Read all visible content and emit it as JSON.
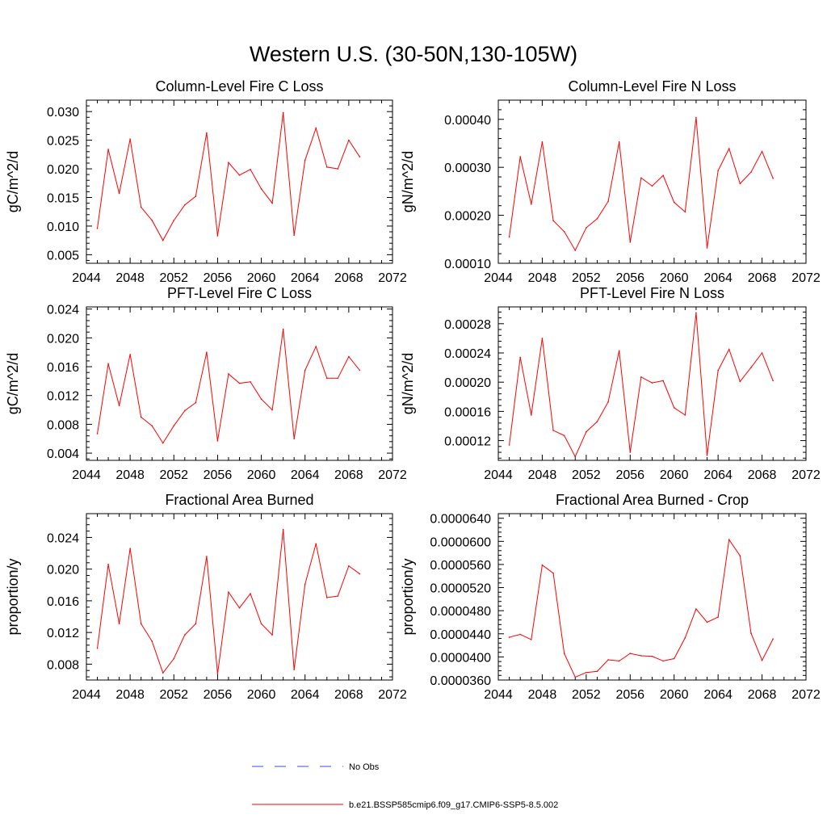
{
  "title": "Western U.S. (30-50N,130-105W)",
  "colors": {
    "model": "#ff0000",
    "obs": "#3b4fd9",
    "axis": "#000000"
  },
  "legend": [
    {
      "label": "No Obs",
      "style": "dashed",
      "color": "#3b4fd9"
    },
    {
      "label": "b.e21.BSSP585cmip6.f09_g17.CMIP6-SSP5-8.5.002",
      "style": "solid",
      "color": "#ff0000"
    }
  ],
  "chart_data": [
    {
      "type": "line",
      "title": "Column-Level Fire C Loss",
      "ylabel": "gC/m^2/d",
      "xlim": [
        2044,
        2072
      ],
      "ylim": [
        0.0035,
        0.032
      ],
      "xticks": [
        2044,
        2048,
        2052,
        2056,
        2060,
        2064,
        2068,
        2072
      ],
      "xtick_labels": [
        "2044",
        "2048",
        "2052",
        "2056",
        "2060",
        "2064",
        "2068",
        "2072"
      ],
      "yticks": [
        0.005,
        0.01,
        0.015,
        0.02,
        0.025,
        0.03
      ],
      "ytick_labels": [
        "0.005",
        "0.010",
        "0.015",
        "0.020",
        "0.025",
        "0.030"
      ],
      "grid": false,
      "x": [
        2045,
        2046,
        2047,
        2048,
        2049,
        2050,
        2051,
        2052,
        2053,
        2054,
        2055,
        2056,
        2057,
        2058,
        2059,
        2060,
        2061,
        2062,
        2063,
        2064,
        2065,
        2066,
        2067,
        2068,
        2069
      ],
      "series": [
        {
          "values": [
            0.0096,
            0.0234,
            0.0157,
            0.0252,
            0.0133,
            0.011,
            0.0075,
            0.011,
            0.0137,
            0.0152,
            0.0263,
            0.0083,
            0.0211,
            0.0189,
            0.0199,
            0.0165,
            0.014,
            0.0298,
            0.0084,
            0.0215,
            0.0271,
            0.0203,
            0.02,
            0.025,
            0.0221
          ]
        }
      ]
    },
    {
      "type": "line",
      "title": "Column-Level Fire N Loss",
      "ylabel": "gN/m^2/d",
      "xlim": [
        2044,
        2072
      ],
      "ylim": [
        0.0001,
        0.00044
      ],
      "xticks": [
        2044,
        2048,
        2052,
        2056,
        2060,
        2064,
        2068,
        2072
      ],
      "xtick_labels": [
        "2044",
        "2048",
        "2052",
        "2056",
        "2060",
        "2064",
        "2068",
        "2072"
      ],
      "yticks": [
        0.0001,
        0.0002,
        0.0003,
        0.0004
      ],
      "ytick_labels": [
        "0.00010",
        "0.00020",
        "0.00030",
        "0.00040"
      ],
      "grid": false,
      "x": [
        2045,
        2046,
        2047,
        2048,
        2049,
        2050,
        2051,
        2052,
        2053,
        2054,
        2055,
        2056,
        2057,
        2058,
        2059,
        2060,
        2061,
        2062,
        2063,
        2064,
        2065,
        2066,
        2067,
        2068,
        2069
      ],
      "series": [
        {
          "values": [
            0.000155,
            0.000322,
            0.000223,
            0.000353,
            0.000189,
            0.000166,
            0.000127,
            0.000174,
            0.000193,
            0.000229,
            0.000353,
            0.000144,
            0.000278,
            0.000261,
            0.000283,
            0.000227,
            0.000207,
            0.000404,
            0.000132,
            0.000293,
            0.000339,
            0.000266,
            0.00029,
            0.000333,
            0.000277
          ]
        }
      ]
    },
    {
      "type": "line",
      "title": "PFT-Level Fire C Loss",
      "ylabel": "gC/m^2/d",
      "xlim": [
        2044,
        2072
      ],
      "ylim": [
        0.003,
        0.0243
      ],
      "xticks": [
        2044,
        2048,
        2052,
        2056,
        2060,
        2064,
        2068,
        2072
      ],
      "xtick_labels": [
        "2044",
        "2048",
        "2052",
        "2056",
        "2060",
        "2064",
        "2068",
        "2072"
      ],
      "yticks": [
        0.004,
        0.008,
        0.012,
        0.016,
        0.02,
        0.024
      ],
      "ytick_labels": [
        "0.004",
        "0.008",
        "0.012",
        "0.016",
        "0.020",
        "0.024"
      ],
      "grid": false,
      "x": [
        2045,
        2046,
        2047,
        2048,
        2049,
        2050,
        2051,
        2052,
        2053,
        2054,
        2055,
        2056,
        2057,
        2058,
        2059,
        2060,
        2061,
        2062,
        2063,
        2064,
        2065,
        2066,
        2067,
        2068,
        2069
      ],
      "series": [
        {
          "values": [
            0.0067,
            0.0164,
            0.0106,
            0.0177,
            0.009,
            0.0078,
            0.0054,
            0.0078,
            0.0099,
            0.011,
            0.018,
            0.0057,
            0.015,
            0.0137,
            0.0139,
            0.0115,
            0.01,
            0.0212,
            0.006,
            0.0155,
            0.0188,
            0.0144,
            0.0144,
            0.0174,
            0.0155
          ]
        }
      ]
    },
    {
      "type": "line",
      "title": "PFT-Level Fire N Loss",
      "ylabel": "gN/m^2/d",
      "xlim": [
        2044,
        2072
      ],
      "ylim": [
        9.3e-05,
        0.000303
      ],
      "xticks": [
        2044,
        2048,
        2052,
        2056,
        2060,
        2064,
        2068,
        2072
      ],
      "xtick_labels": [
        "2044",
        "2048",
        "2052",
        "2056",
        "2060",
        "2064",
        "2068",
        "2072"
      ],
      "yticks": [
        0.00012,
        0.00016,
        0.0002,
        0.00024,
        0.00028
      ],
      "ytick_labels": [
        "0.00012",
        "0.00016",
        "0.00020",
        "0.00024",
        "0.00028"
      ],
      "grid": false,
      "x": [
        2045,
        2046,
        2047,
        2048,
        2049,
        2050,
        2051,
        2052,
        2053,
        2054,
        2055,
        2056,
        2057,
        2058,
        2059,
        2060,
        2061,
        2062,
        2063,
        2064,
        2065,
        2066,
        2067,
        2068,
        2069
      ],
      "series": [
        {
          "values": [
            0.000114,
            0.000234,
            0.000155,
            0.00026,
            0.000134,
            0.000127,
            9.8e-05,
            0.000132,
            0.000146,
            0.000173,
            0.000243,
            0.000104,
            0.000207,
            0.000199,
            0.000202,
            0.000165,
            0.000155,
            0.000295,
            0.0001,
            0.000216,
            0.000245,
            0.000201,
            0.00022,
            0.00024,
            0.000202
          ]
        }
      ]
    },
    {
      "type": "line",
      "title": "Fractional Area Burned",
      "ylabel": "proportion/y",
      "xlim": [
        2044,
        2072
      ],
      "ylim": [
        0.006,
        0.027
      ],
      "xticks": [
        2044,
        2048,
        2052,
        2056,
        2060,
        2064,
        2068,
        2072
      ],
      "xtick_labels": [
        "2044",
        "2048",
        "2052",
        "2056",
        "2060",
        "2064",
        "2068",
        "2072"
      ],
      "yticks": [
        0.008,
        0.012,
        0.016,
        0.02,
        0.024
      ],
      "ytick_labels": [
        "0.008",
        "0.012",
        "0.016",
        "0.020",
        "0.024"
      ],
      "grid": false,
      "x": [
        2045,
        2046,
        2047,
        2048,
        2049,
        2050,
        2051,
        2052,
        2053,
        2054,
        2055,
        2056,
        2057,
        2058,
        2059,
        2060,
        2061,
        2062,
        2063,
        2064,
        2065,
        2066,
        2067,
        2068,
        2069
      ],
      "series": [
        {
          "values": [
            0.01,
            0.0206,
            0.0131,
            0.0226,
            0.0131,
            0.0109,
            0.0069,
            0.0087,
            0.0117,
            0.0131,
            0.0216,
            0.0068,
            0.0171,
            0.0151,
            0.0169,
            0.0131,
            0.0117,
            0.025,
            0.0073,
            0.0181,
            0.0232,
            0.0164,
            0.0166,
            0.0204,
            0.0194
          ]
        }
      ]
    },
    {
      "type": "line",
      "title": "Fractional Area Burned - Crop",
      "ylabel": "proportion/y",
      "xlim": [
        2044,
        2072
      ],
      "ylim": [
        3.6e-05,
        6.48e-05
      ],
      "xticks": [
        2044,
        2048,
        2052,
        2056,
        2060,
        2064,
        2068,
        2072
      ],
      "xtick_labels": [
        "2044",
        "2048",
        "2052",
        "2056",
        "2060",
        "2064",
        "2068",
        "2072"
      ],
      "yticks": [
        3.6e-05,
        4e-05,
        4.4e-05,
        4.8e-05,
        5.2e-05,
        5.6e-05,
        6e-05,
        6.4e-05
      ],
      "ytick_labels": [
        "0.0000360",
        "0.0000400",
        "0.0000440",
        "0.0000480",
        "0.0000520",
        "0.0000560",
        "0.0000600",
        "0.0000640"
      ],
      "grid": false,
      "x": [
        2045,
        2046,
        2047,
        2048,
        2049,
        2050,
        2051,
        2052,
        2053,
        2054,
        2055,
        2056,
        2057,
        2058,
        2059,
        2060,
        2061,
        2062,
        2063,
        2064,
        2065,
        2066,
        2067,
        2068,
        2069
      ],
      "series": [
        {
          "values": [
            4.34e-05,
            4.39e-05,
            4.3e-05,
            5.59e-05,
            5.45e-05,
            4.06e-05,
            3.65e-05,
            3.73e-05,
            3.75e-05,
            3.95e-05,
            3.93e-05,
            4.06e-05,
            4.02e-05,
            4.01e-05,
            3.93e-05,
            3.97e-05,
            4.33e-05,
            4.83e-05,
            4.6e-05,
            4.69e-05,
            6.03e-05,
            5.75e-05,
            4.41e-05,
            3.94e-05,
            4.31e-05
          ]
        }
      ]
    }
  ]
}
